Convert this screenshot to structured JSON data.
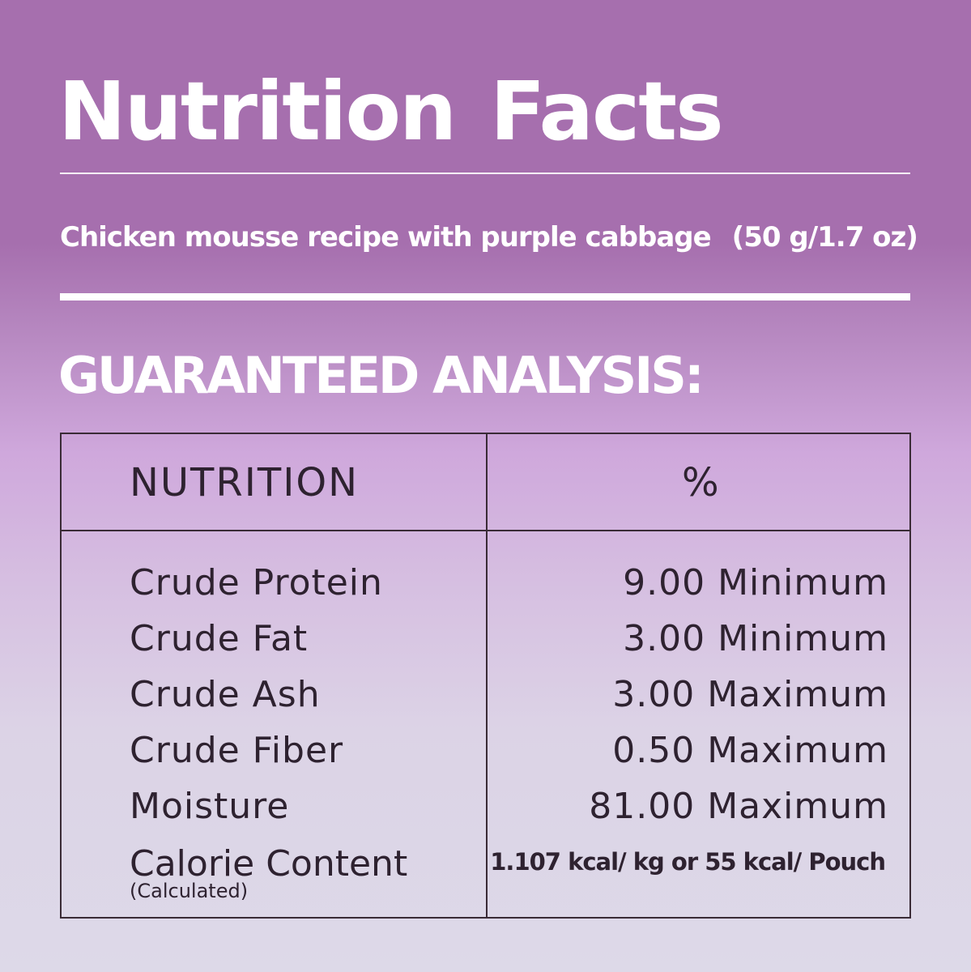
{
  "title": "Nutrition Facts",
  "product": {
    "description": "Chicken mousse recipe with purple cabbage",
    "serving": "(50 g/1.7 oz)"
  },
  "section_heading": "GUARANTEED ANALYSIS:",
  "table": {
    "headers": [
      "NUTRITION",
      "%"
    ],
    "rows": [
      {
        "name": "Crude Protein",
        "value": "9.00 Minimum"
      },
      {
        "name": "Crude Fat",
        "value": "3.00 Minimum"
      },
      {
        "name": "Crude Ash",
        "value": "3.00 Maximum"
      },
      {
        "name": "Crude Fiber",
        "value": "0.50 Maximum"
      },
      {
        "name": "Moisture",
        "value": "81.00 Maximum"
      }
    ],
    "calorie": {
      "name": "Calorie Content",
      "note": "(Calculated)",
      "value": "1.107 kcal/ kg or 55 kcal/ Pouch"
    }
  },
  "colors": {
    "background_top": "#a66fae",
    "background_mid": "#cfa8dc",
    "background_bottom": "#ddd9e8",
    "heading_text": "#ffffff",
    "table_text": "#2e2230",
    "table_border": "#3a2b36"
  }
}
